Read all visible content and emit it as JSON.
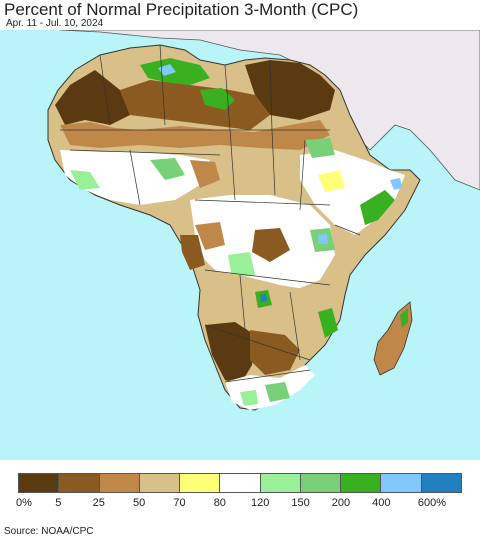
{
  "header": {
    "title": "Percent of Normal Precipitation 3-Month (CPC)",
    "subtitle": "Apr. 11 - Jul. 10, 2024"
  },
  "map": {
    "ocean_color": "#b8f4f8",
    "land_outside_color": "#ede8ee",
    "border_color": "#333333"
  },
  "legend": {
    "colors": [
      "#5a3a10",
      "#8a5a20",
      "#c08848",
      "#d8c088",
      "#ffff78",
      "#ffffff",
      "#98f098",
      "#78d078",
      "#38b020",
      "#80c8ff",
      "#2080c0"
    ],
    "ticks": [
      "0%",
      "5",
      "25",
      "50",
      "70",
      "80",
      "120",
      "150",
      "200",
      "400",
      "600%"
    ]
  },
  "footer": {
    "source": "Source: NOAA/CPC"
  }
}
